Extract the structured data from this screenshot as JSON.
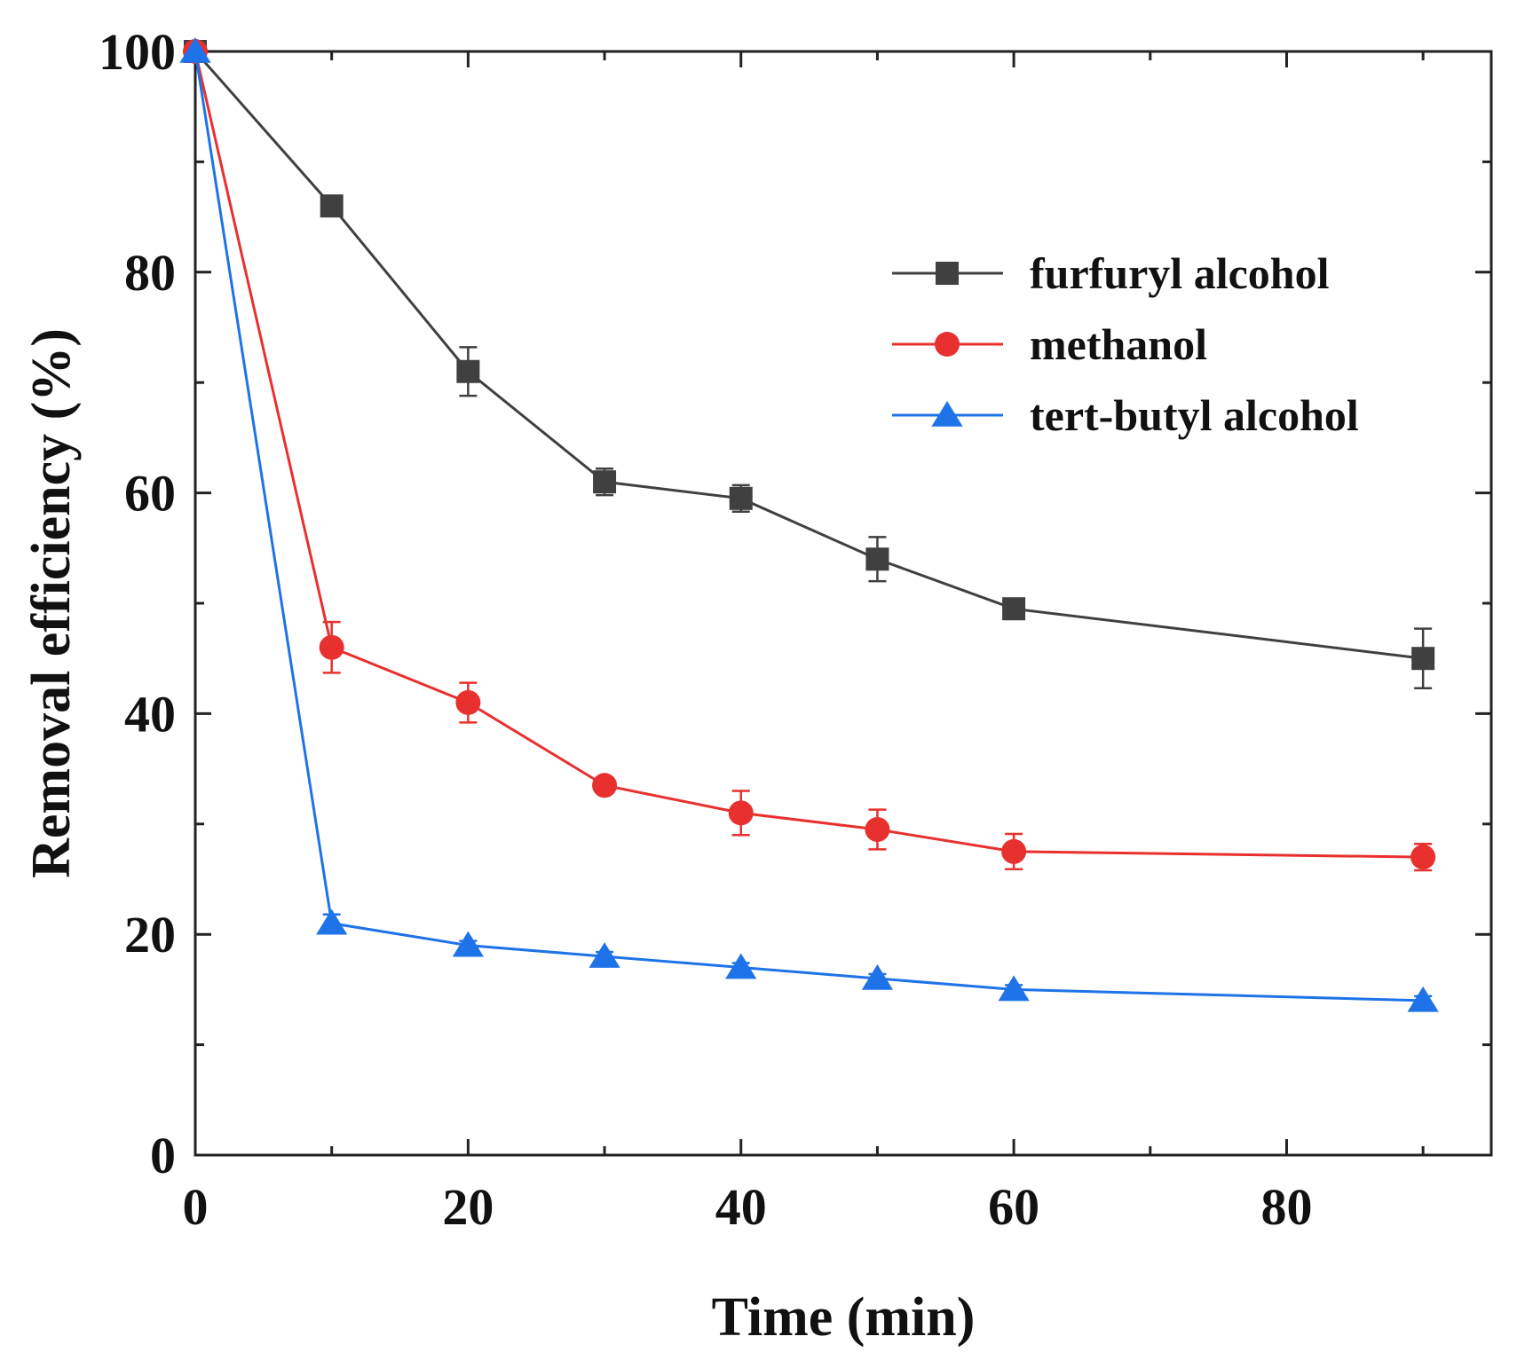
{
  "chart_data": {
    "type": "line",
    "title": "",
    "xlabel": "Time (min)",
    "ylabel": "Removal efficiency (%)",
    "xlim": [
      0,
      95
    ],
    "ylim": [
      0,
      100
    ],
    "xticks": [
      0,
      20,
      40,
      60,
      80
    ],
    "yticks": [
      0,
      20,
      40,
      60,
      80,
      100
    ],
    "x": [
      0,
      10,
      20,
      30,
      40,
      50,
      60,
      90
    ],
    "legend_position": "top-right",
    "series": [
      {
        "name": "furfuryl alcohol",
        "color": "#404040",
        "marker": "square",
        "values": [
          100,
          86,
          71,
          61,
          59.5,
          54,
          49.5,
          45
        ],
        "errors": [
          0,
          0.8,
          2.2,
          1.2,
          1.2,
          2.0,
          0.8,
          2.7
        ]
      },
      {
        "name": "methanol",
        "color": "#e8302f",
        "marker": "circle",
        "values": [
          100,
          46,
          41,
          33.5,
          31,
          29.5,
          27.5,
          27
        ],
        "errors": [
          0,
          2.3,
          1.8,
          0.6,
          2.0,
          1.8,
          1.6,
          1.2
        ]
      },
      {
        "name": "tert-butyl alcohol",
        "color": "#1e73e8",
        "marker": "triangle",
        "values": [
          100,
          21,
          19,
          18,
          17,
          16,
          15,
          14
        ],
        "errors": [
          0,
          0.8,
          0.4,
          0.4,
          0.4,
          0.4,
          0.4,
          0.4
        ]
      }
    ]
  }
}
